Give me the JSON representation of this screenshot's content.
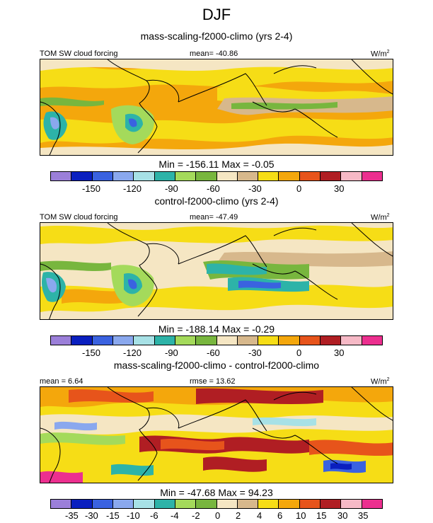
{
  "title": "DJF",
  "panels": [
    {
      "heading": "mass-scaling-f2000-climo (yrs 2-4)",
      "left_label": "TOM SW cloud forcing",
      "center_label": "mean= -40.86",
      "units": "W/m",
      "units_exp": "2",
      "stats": "Min = -156.11 Max =  -0.05",
      "ticks": [
        "-150",
        "-120",
        "-90",
        "-60",
        "-30",
        "0",
        "30"
      ]
    },
    {
      "heading": "control-f2000-climo (yrs 2-4)",
      "left_label": "TOM SW cloud forcing",
      "center_label": "mean= -47.49",
      "units": "W/m",
      "units_exp": "2",
      "stats": "Min = -188.14 Max =  -0.29",
      "ticks": [
        "-150",
        "-120",
        "-90",
        "-60",
        "-30",
        "0",
        "30"
      ]
    },
    {
      "heading": "mass-scaling-f2000-climo - control-f2000-climo",
      "left_label": "mean =   6.64",
      "center_label": "rmse =  13.62",
      "units": "W/m",
      "units_exp": "2",
      "stats": "Min = -47.68 Max =  94.23",
      "ticks": [
        "-35",
        "-30",
        "-15",
        "-10",
        "-6",
        "-4",
        "-2",
        "0",
        "2",
        "4",
        "6",
        "10",
        "15",
        "30",
        "35"
      ]
    }
  ],
  "colors": {
    "abs_scale": [
      "#9b7fd9",
      "#0a1fbf",
      "#3a62e0",
      "#8aa8ee",
      "#a7e1e6",
      "#2db3a8",
      "#a4da5b",
      "#78b63e",
      "#f5e6c3",
      "#d7b88c",
      "#f6dd16",
      "#f4a70c",
      "#e7541b",
      "#b01e23",
      "#f6b9c6",
      "#ec2f8f"
    ],
    "diff_scale": [
      "#9b7fd9",
      "#0a1fbf",
      "#3a62e0",
      "#8aa8ee",
      "#a7e1e6",
      "#2db3a8",
      "#a4da5b",
      "#78b63e",
      "#f5e6c3",
      "#d7b88c",
      "#f6dd16",
      "#f4a70c",
      "#e7541b",
      "#b01e23",
      "#f6b9c6",
      "#ec2f8f"
    ]
  }
}
